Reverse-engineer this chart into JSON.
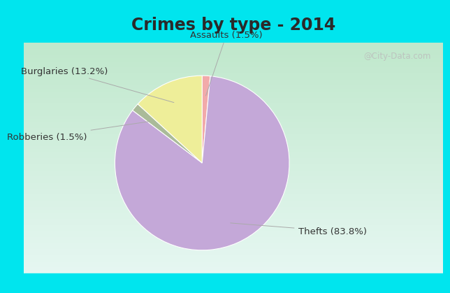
{
  "title": "Crimes by type - 2014",
  "slices": [
    {
      "label": "Thefts (83.8%)",
      "value": 83.8,
      "color": "#C4A8D8"
    },
    {
      "label": "Assaults (1.5%)",
      "value": 1.5,
      "color": "#F2AAAA"
    },
    {
      "label": "Burglaries (13.2%)",
      "value": 13.2,
      "color": "#EEEE99"
    },
    {
      "label": "Robberies (1.5%)",
      "value": 1.5,
      "color": "#AABB99"
    }
  ],
  "background_top": "#00E5EE",
  "background_grad_top": "#E8F8F4",
  "background_grad_bottom": "#C8EED8",
  "title_fontsize": 17,
  "label_fontsize": 9.5,
  "watermark": "@City-Data.com",
  "title_color": "#333333"
}
